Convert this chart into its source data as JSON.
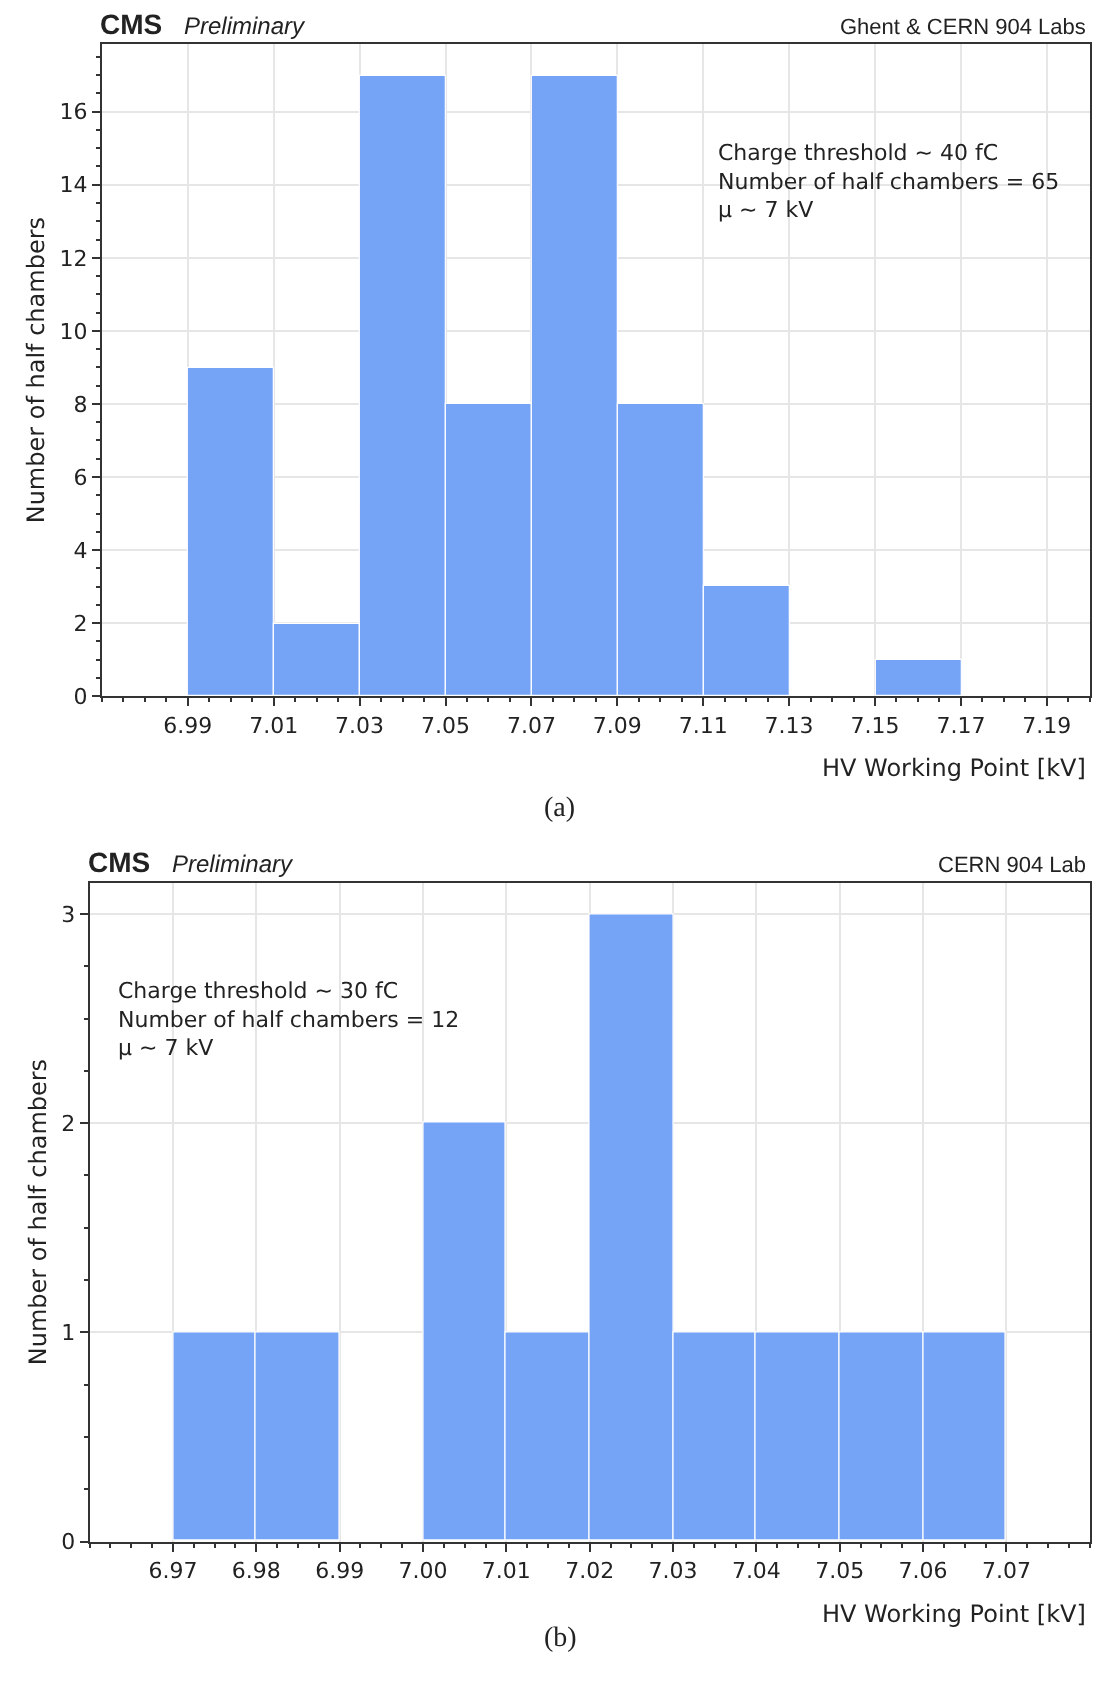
{
  "chart_data": [
    {
      "type": "histogram",
      "title": "CMS",
      "subtitle": "Preliminary",
      "xlabel": "HV Working Point [kV]",
      "ylabel": "Number of half chambers",
      "bins": [
        6.99,
        7.01,
        7.03,
        7.05,
        7.07,
        7.09,
        7.11,
        7.13,
        7.15,
        7.17
      ],
      "values": [
        9,
        2,
        17,
        8,
        17,
        8,
        3,
        0,
        1
      ],
      "color": "#75a4f7",
      "xlim": [
        6.97,
        7.2
      ],
      "xticks": [
        6.99,
        7.01,
        7.03,
        7.05,
        7.07,
        7.09,
        7.11,
        7.13,
        7.15,
        7.17,
        7.19
      ],
      "ylim": [
        0,
        17.85
      ],
      "yticks": [
        0,
        2,
        4,
        6,
        8,
        10,
        12,
        14,
        16
      ],
      "grid": true,
      "annotations": [
        "Ghent & CERN 904 Labs",
        "Charge threshold ~ 40 fC\nNumber of half chambers = 65\nμ ~ 7 kV",
        "(a)"
      ]
    },
    {
      "type": "histogram",
      "title": "CMS",
      "subtitle": "Preliminary",
      "xlabel": "HV Working Point [kV]",
      "ylabel": "Number of half chambers",
      "bins": [
        6.97,
        6.98,
        6.99,
        7.0,
        7.01,
        7.02,
        7.03,
        7.04,
        7.05,
        7.06,
        7.07
      ],
      "values": [
        1,
        1,
        0,
        2,
        1,
        3,
        1,
        1,
        1,
        1
      ],
      "color": "#75a4f7",
      "xlim": [
        6.96,
        7.08
      ],
      "xticks": [
        6.97,
        6.98,
        6.99,
        {
          "value": 7.0,
          "label": "7.00"
        },
        7.01,
        7.02,
        7.03,
        7.04,
        7.05,
        7.06,
        7.07
      ],
      "ylim": [
        0,
        3.15
      ],
      "yticks": [
        0,
        1,
        2,
        3
      ],
      "grid": true,
      "annotations": [
        "CERN 904 Lab",
        "Charge threshold ~ 30 fC\nNumber of half chambers = 12\nμ ~ 7 kV",
        "(b)"
      ]
    }
  ]
}
